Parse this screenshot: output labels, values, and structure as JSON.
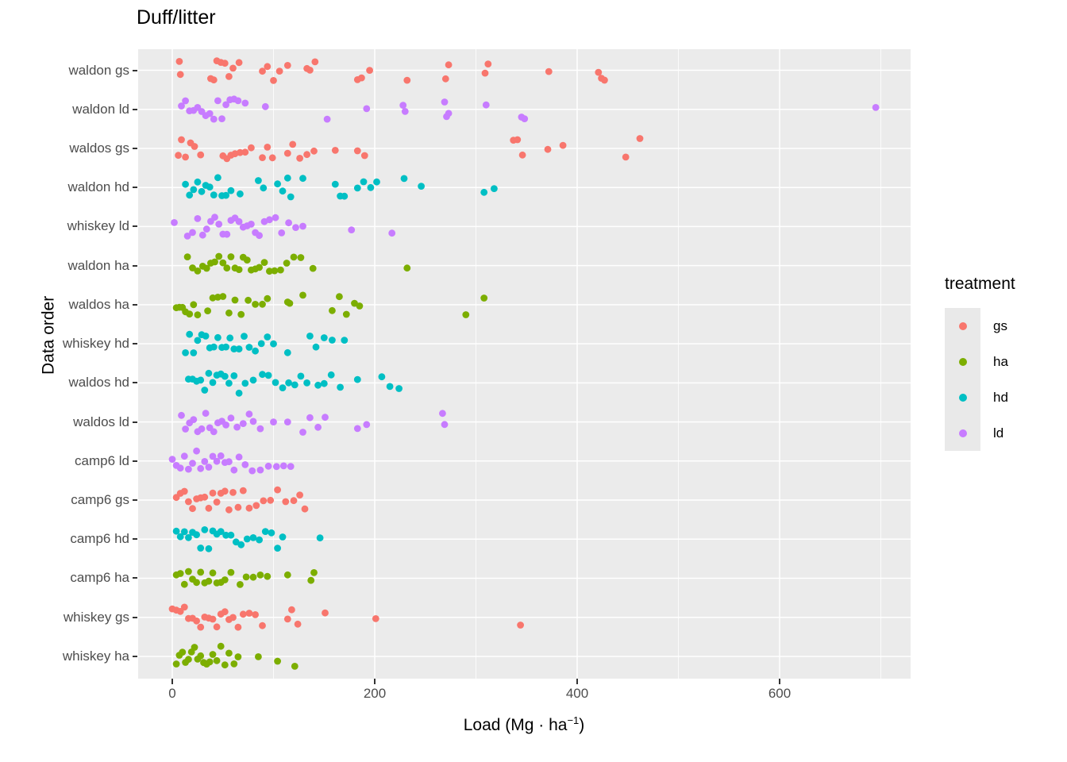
{
  "title": "Duff/litter",
  "axes": {
    "y_title": "Data order",
    "x_title_prefix": "Load (Mg · ha",
    "x_title_sup": "−1",
    "x_title_suffix": ")",
    "x_tick_labels": [
      "0",
      "200",
      "400",
      "600"
    ]
  },
  "legend": {
    "title": "treatment",
    "items": [
      {
        "label": "gs",
        "color": "#F8766D"
      },
      {
        "label": "ha",
        "color": "#7CAE00"
      },
      {
        "label": "hd",
        "color": "#00BFC4"
      },
      {
        "label": "ld",
        "color": "#C77CFF"
      }
    ]
  },
  "colors": {
    "panel_background": "#EBEBEB",
    "gridline": "#FFFFFF",
    "axis_text": "#4D4D4D",
    "tick_mark": "#333333",
    "gs": "#F8766D",
    "ha": "#7CAE00",
    "hd": "#00BFC4",
    "ld": "#C77CFF"
  },
  "chart_data": {
    "type": "scatter",
    "subtype": "horizontal-jitter-strip",
    "title": "Duff/litter",
    "xlabel": "Load (Mg · ha^-1)",
    "ylabel": "Data order",
    "xlim": [
      0,
      729
    ],
    "x_major_ticks": [
      0,
      200,
      400,
      600
    ],
    "x_minor_ticks": [
      100,
      300,
      500,
      700
    ],
    "grid": "on",
    "legend_title": "treatment",
    "legend_position": "right",
    "categories_top_to_bottom": [
      "waldon gs",
      "waldon ld",
      "waldos gs",
      "waldon hd",
      "whiskey ld",
      "waldon ha",
      "waldos ha",
      "whiskey hd",
      "waldos hd",
      "waldos ld",
      "camp6 ld",
      "camp6 gs",
      "camp6 hd",
      "camp6 ha",
      "whiskey gs",
      "whiskey ha"
    ],
    "groups": [
      {
        "category": "waldon gs",
        "treatment": "gs",
        "color": "#F8766D",
        "values": [
          7,
          8,
          38,
          41,
          44,
          48,
          52,
          56,
          60,
          66,
          89,
          94,
          100,
          106,
          114,
          133,
          136,
          141,
          183,
          187,
          195,
          232,
          270,
          273,
          309,
          312,
          372,
          421,
          424,
          427
        ]
      },
      {
        "category": "waldon ld",
        "treatment": "ld",
        "color": "#C77CFF",
        "values": [
          9,
          13,
          17,
          21,
          25,
          29,
          33,
          37,
          41,
          45,
          49,
          53,
          57,
          61,
          65,
          72,
          92,
          153,
          192,
          228,
          230,
          269,
          271,
          273,
          310,
          345,
          348,
          695
        ]
      },
      {
        "category": "waldos gs",
        "treatment": "gs",
        "color": "#F8766D",
        "values": [
          6,
          9,
          13,
          18,
          22,
          28,
          50,
          54,
          58,
          62,
          67,
          72,
          78,
          89,
          94,
          99,
          114,
          119,
          126,
          133,
          140,
          161,
          183,
          190,
          337,
          341,
          346,
          371,
          386,
          448,
          462
        ]
      },
      {
        "category": "waldon hd",
        "treatment": "hd",
        "color": "#00BFC4",
        "values": [
          13,
          17,
          21,
          25,
          29,
          33,
          37,
          41,
          45,
          49,
          53,
          58,
          67,
          85,
          90,
          104,
          109,
          114,
          117,
          129,
          161,
          166,
          170,
          183,
          189,
          196,
          202,
          229,
          246,
          308,
          318
        ]
      },
      {
        "category": "whiskey ld",
        "treatment": "ld",
        "color": "#C77CFF",
        "values": [
          2,
          15,
          20,
          25,
          30,
          34,
          38,
          42,
          46,
          50,
          54,
          58,
          62,
          66,
          70,
          74,
          78,
          82,
          86,
          91,
          96,
          102,
          108,
          115,
          122,
          129,
          177,
          217
        ]
      },
      {
        "category": "waldon ha",
        "treatment": "ha",
        "color": "#7CAE00",
        "values": [
          15,
          20,
          25,
          30,
          34,
          38,
          42,
          46,
          50,
          54,
          58,
          62,
          66,
          70,
          74,
          78,
          82,
          86,
          91,
          96,
          101,
          107,
          113,
          120,
          127,
          139,
          232
        ]
      },
      {
        "category": "waldos ha",
        "treatment": "ha",
        "color": "#7CAE00",
        "values": [
          4,
          7,
          10,
          13,
          17,
          21,
          25,
          35,
          40,
          45,
          50,
          56,
          62,
          68,
          75,
          82,
          89,
          94,
          114,
          116,
          129,
          158,
          165,
          172,
          180,
          185,
          290,
          308
        ]
      },
      {
        "category": "whiskey hd",
        "treatment": "hd",
        "color": "#00BFC4",
        "values": [
          13,
          17,
          21,
          25,
          29,
          33,
          37,
          41,
          45,
          49,
          53,
          57,
          61,
          66,
          71,
          76,
          82,
          88,
          94,
          100,
          114,
          136,
          142,
          150,
          158,
          170
        ]
      },
      {
        "category": "waldos hd",
        "treatment": "hd",
        "color": "#00BFC4",
        "values": [
          16,
          20,
          24,
          28,
          32,
          36,
          40,
          44,
          48,
          52,
          56,
          61,
          66,
          72,
          80,
          89,
          95,
          102,
          109,
          115,
          121,
          127,
          133,
          144,
          150,
          157,
          166,
          183,
          207,
          215,
          224
        ]
      },
      {
        "category": "waldos ld",
        "treatment": "ld",
        "color": "#C77CFF",
        "values": [
          9,
          13,
          17,
          21,
          25,
          29,
          33,
          37,
          41,
          45,
          49,
          53,
          58,
          64,
          70,
          76,
          80,
          87,
          100,
          114,
          129,
          136,
          144,
          151,
          183,
          192,
          267,
          269
        ]
      },
      {
        "category": "camp6 ld",
        "treatment": "ld",
        "color": "#C77CFF",
        "values": [
          0,
          4,
          8,
          12,
          16,
          20,
          24,
          28,
          32,
          36,
          40,
          44,
          48,
          52,
          56,
          61,
          66,
          72,
          79,
          87,
          95,
          103,
          110,
          117
        ]
      },
      {
        "category": "camp6 gs",
        "treatment": "gs",
        "color": "#F8766D",
        "values": [
          4,
          8,
          12,
          16,
          20,
          24,
          28,
          32,
          36,
          40,
          44,
          48,
          52,
          56,
          60,
          65,
          70,
          76,
          83,
          90,
          97,
          104,
          112,
          120,
          126,
          131
        ]
      },
      {
        "category": "camp6 hd",
        "treatment": "hd",
        "color": "#00BFC4",
        "values": [
          4,
          8,
          12,
          16,
          20,
          24,
          28,
          32,
          36,
          40,
          44,
          48,
          53,
          58,
          63,
          68,
          74,
          80,
          86,
          92,
          98,
          104,
          109,
          146
        ]
      },
      {
        "category": "camp6 ha",
        "treatment": "ha",
        "color": "#7CAE00",
        "values": [
          4,
          8,
          12,
          16,
          20,
          24,
          28,
          32,
          36,
          40,
          44,
          48,
          52,
          58,
          67,
          73,
          80,
          87,
          94,
          114,
          137,
          140
        ]
      },
      {
        "category": "whiskey gs",
        "treatment": "gs",
        "color": "#F8766D",
        "values": [
          0,
          4,
          8,
          12,
          16,
          20,
          24,
          28,
          32,
          36,
          40,
          44,
          48,
          52,
          56,
          60,
          65,
          70,
          76,
          82,
          89,
          114,
          118,
          124,
          151,
          201,
          344
        ]
      },
      {
        "category": "whiskey ha",
        "treatment": "ha",
        "color": "#7CAE00",
        "values": [
          4,
          7,
          10,
          13,
          16,
          19,
          22,
          25,
          28,
          31,
          34,
          37,
          40,
          44,
          48,
          52,
          56,
          61,
          65,
          85,
          104,
          121
        ]
      }
    ]
  }
}
